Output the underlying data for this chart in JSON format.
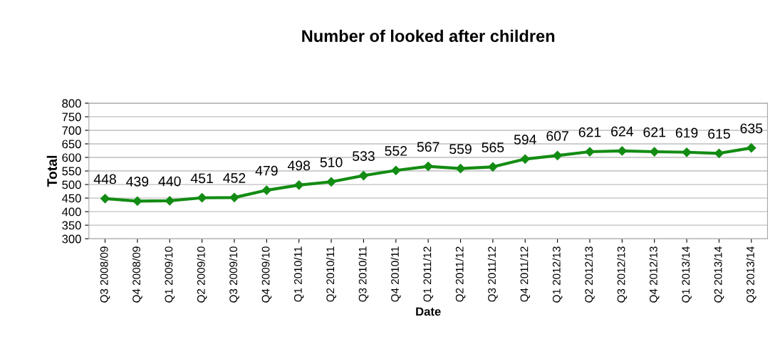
{
  "chart_data": {
    "type": "line",
    "title": "Number of looked after children",
    "xlabel": "Date",
    "ylabel": "Total",
    "categories": [
      "Q3 2008/09",
      "Q4 2008/09",
      "Q1 2009/10",
      "Q2 2009/10",
      "Q3 2009/10",
      "Q4 2009/10",
      "Q1 2010/11",
      "Q2 2010/11",
      "Q3 2010/11",
      "Q4 2010/11",
      "Q1 2011/12",
      "Q2 2011/12",
      "Q3 2011/12",
      "Q4 2011/12",
      "Q1 2012/13",
      "Q2 2012/13",
      "Q3 2012/13",
      "Q4 2012/13",
      "Q1 2013/14",
      "Q2 2013/14",
      "Q3 2013/14"
    ],
    "series": [
      {
        "color": "#138c13",
        "values": [
          448,
          439,
          440,
          451,
          452,
          479,
          498,
          510,
          533,
          552,
          567,
          559,
          565,
          594,
          607,
          621,
          624,
          621,
          619,
          615,
          635
        ]
      }
    ],
    "ylim": [
      300,
      800
    ],
    "yticks": [
      300,
      350,
      400,
      450,
      500,
      550,
      600,
      650,
      700,
      750,
      800
    ],
    "grid": "y",
    "legend": false,
    "marker": "diamond",
    "line_style": "solid",
    "data_labels": true
  }
}
